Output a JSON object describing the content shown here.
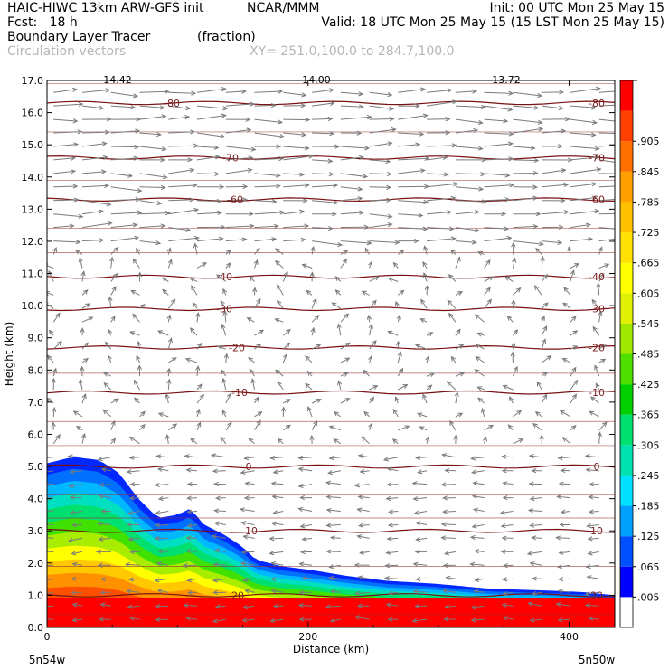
{
  "header": {
    "model": "HAIC-HIWC 13km ARW-GFS init",
    "org": "NCAR/MMM",
    "fcst_label": "Fcst:",
    "fcst_value": "18 h",
    "init": "Init: 00 UTC Mon 25 May 15",
    "valid": "Valid: 18 UTC Mon 25 May 15 (15 LST Mon 25 May 15)",
    "field": "Boundary Layer Tracer",
    "units": "(fraction)",
    "vectors": "Circulation vectors",
    "xy": "XY= 251.0,100.0 to 284.7,100.0"
  },
  "chart_data": {
    "type": "heatmap",
    "ylabel": "Height (km)",
    "xlabel": "Distance (km)",
    "x_start_label": "5n54w",
    "x_end_label": "5n50w",
    "xlim": [
      0,
      435
    ],
    "ylim": [
      0,
      17
    ],
    "x_ticks": [
      "0",
      "200",
      "400"
    ],
    "x_tick_values": [
      0,
      200,
      400
    ],
    "y_ticks": [
      "0.0",
      "1.0",
      "2.0",
      "3.0",
      "4.0",
      "5.0",
      "6.0",
      "7.0",
      "8.0",
      "9.0",
      "10.0",
      "11.0",
      "12.0",
      "13.0",
      "14.0",
      "15.0",
      "16.0",
      "17.0"
    ],
    "colorbar_labels": [
      ".005",
      ".065",
      ".125",
      ".185",
      ".245",
      ".305",
      ".365",
      ".425",
      ".485",
      ".545",
      ".605",
      ".665",
      ".725",
      ".785",
      ".845",
      ".905"
    ],
    "colorbar_colors": [
      "#ffffff",
      "#0000ff",
      "#0050ff",
      "#00a0ff",
      "#00e0ff",
      "#00e0b0",
      "#00e070",
      "#00d000",
      "#50e000",
      "#a0e800",
      "#e0f000",
      "#ffff00",
      "#ffe000",
      "#ffc000",
      "#ffa000",
      "#ff7000",
      "#ff4000",
      "#ff0000"
    ],
    "tracer_top_km": [
      [
        0,
        5.1
      ],
      [
        20,
        5.3
      ],
      [
        40,
        5.2
      ],
      [
        55,
        4.8
      ],
      [
        70,
        4.0
      ],
      [
        85,
        3.4
      ],
      [
        100,
        3.5
      ],
      [
        110,
        3.7
      ],
      [
        120,
        3.2
      ],
      [
        135,
        2.9
      ],
      [
        150,
        2.5
      ],
      [
        160,
        2.1
      ],
      [
        180,
        1.9
      ],
      [
        200,
        1.8
      ],
      [
        230,
        1.6
      ],
      [
        260,
        1.45
      ],
      [
        300,
        1.35
      ],
      [
        340,
        1.2
      ],
      [
        380,
        1.15
      ],
      [
        410,
        1.1
      ],
      [
        435,
        1.0
      ]
    ],
    "temperature_contours": [
      {
        "label": "-80",
        "km": 16.3
      },
      {
        "label": "-70",
        "km": 14.6
      },
      {
        "label": "-60",
        "km": 13.3
      },
      {
        "label": "-40",
        "km": 10.9
      },
      {
        "label": "-30",
        "km": 9.9
      },
      {
        "label": "-20",
        "km": 8.7
      },
      {
        "label": "-10",
        "km": 7.3
      },
      {
        "label": "0",
        "km": 5.0
      },
      {
        "label": "10",
        "km": 3.0
      },
      {
        "label": "20",
        "km": 1.0
      }
    ],
    "top_labels": [
      "14.42",
      "14.00",
      "13.72"
    ]
  }
}
